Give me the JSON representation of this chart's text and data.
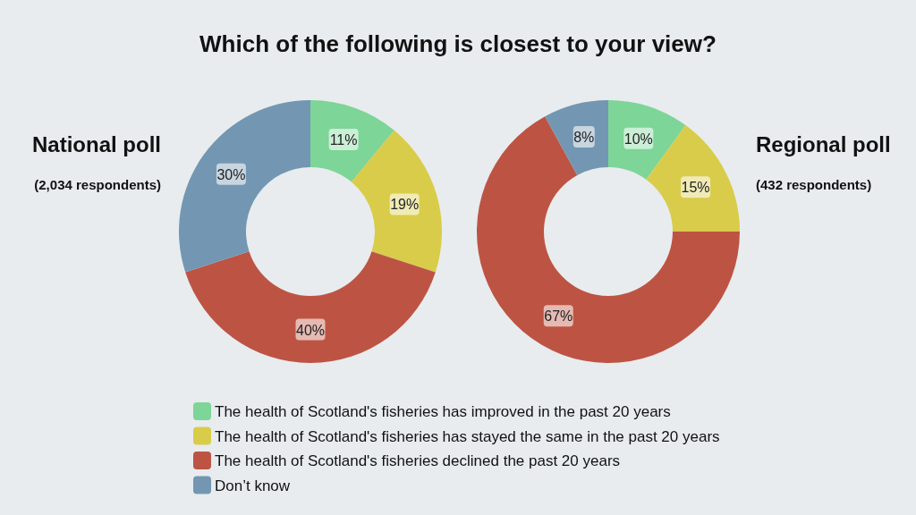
{
  "chart_data": [
    {
      "type": "donut",
      "title": "National poll",
      "subtitle": "(2,034 respondents)",
      "annotations": [
        "Which of the following is closest to your view?"
      ],
      "categories": [
        "The health of Scotland's fisheries has improved in the past 20 years",
        "The health of Scotland's fisheries has stayed the same in the past 20 years",
        "The health of Scotland's fisheries declined the past 20 years",
        "Don’t know"
      ],
      "values": [
        11,
        19,
        40,
        30
      ],
      "value_labels": [
        "11%",
        "19%",
        "40%",
        "30%"
      ],
      "colors": [
        "#7dd598",
        "#d9cc4a",
        "#bd5443",
        "#7397b2"
      ],
      "legend": "bottom"
    },
    {
      "type": "donut",
      "title": "Regional poll",
      "subtitle": "(432 respondents)",
      "categories": [
        null,
        null,
        null,
        null
      ],
      "values": [
        10,
        15,
        67,
        8
      ],
      "value_labels": [
        "10%",
        "15%",
        "67%",
        "8%"
      ],
      "colors": [
        "#7dd598",
        "#d9cc4a",
        "#bd5443",
        "#7397b2"
      ]
    }
  ]
}
